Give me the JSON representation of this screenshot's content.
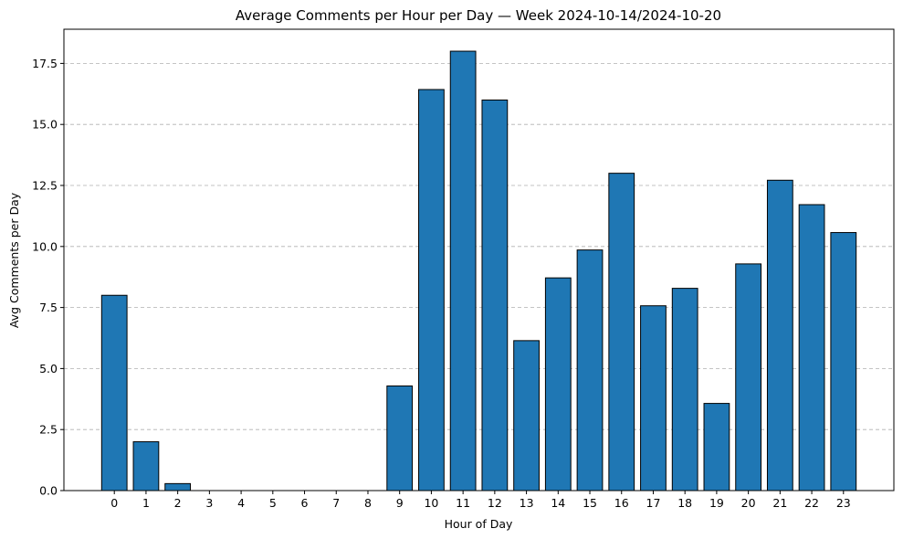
{
  "chart_data": {
    "type": "bar",
    "title": "Average Comments per Hour per Day — Week 2024-10-14/2024-10-20",
    "xlabel": "Hour of Day",
    "ylabel": "Avg Comments per Day",
    "categories": [
      "0",
      "1",
      "2",
      "3",
      "4",
      "5",
      "6",
      "7",
      "8",
      "9",
      "10",
      "11",
      "12",
      "13",
      "14",
      "15",
      "16",
      "17",
      "18",
      "19",
      "20",
      "21",
      "22",
      "23"
    ],
    "values": [
      8.0,
      2.0,
      0.286,
      0,
      0,
      0,
      0,
      0,
      0,
      4.286,
      16.43,
      18.0,
      16.0,
      6.143,
      8.714,
      9.857,
      13.0,
      7.571,
      8.286,
      3.571,
      9.286,
      12.714,
      11.714,
      10.571
    ],
    "ylim": [
      0,
      18.9
    ],
    "yticks": [
      0.0,
      2.5,
      5.0,
      7.5,
      10.0,
      12.5,
      15.0,
      17.5
    ],
    "ytick_labels": [
      "0.0",
      "2.5",
      "5.0",
      "7.5",
      "10.0",
      "12.5",
      "15.0",
      "17.5"
    ],
    "grid": "y-dashed",
    "bar_color": "#1f77b4",
    "bar_edge_color": "#000000",
    "grid_color": "#b0b0b0"
  }
}
